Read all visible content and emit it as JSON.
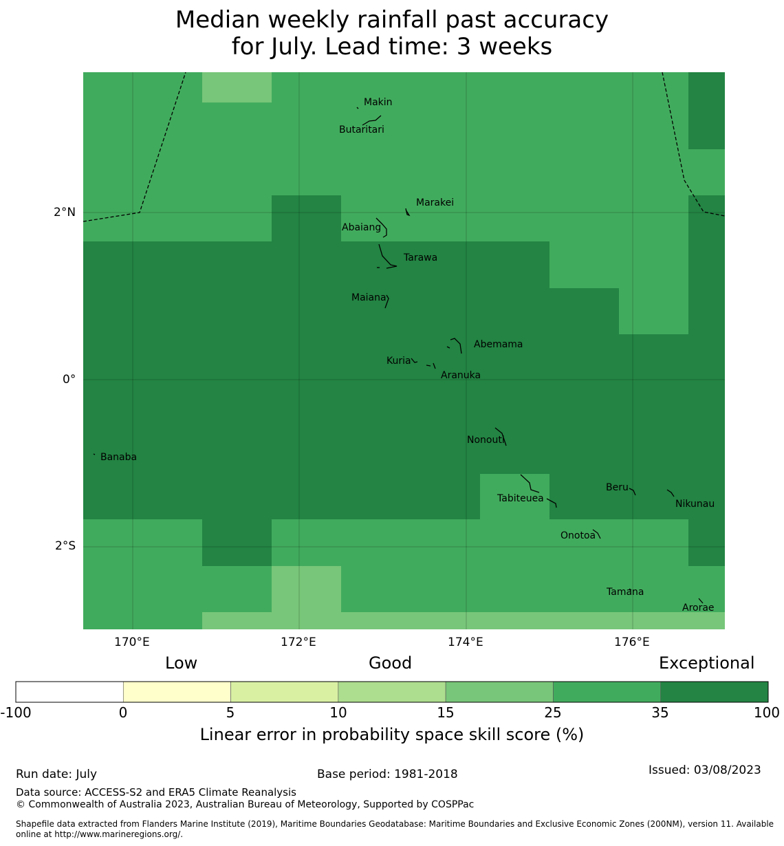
{
  "title_line1": "Median weekly rainfall past accuracy",
  "title_line2": "for July. Lead time: 3 weeks",
  "map": {
    "lon_labels": [
      "170°E",
      "172°E",
      "174°E",
      "176°E"
    ],
    "lat_labels": [
      "2°N",
      "0°",
      "2°S"
    ],
    "places": [
      {
        "name": "Makin",
        "lon": 172.9,
        "lat": 3.3
      },
      {
        "name": "Butaritari",
        "lon": 172.8,
        "lat": 3.0
      },
      {
        "name": "Marakei",
        "lon": 173.3,
        "lat": 2.0
      },
      {
        "name": "Abaiang",
        "lon": 173.0,
        "lat": 1.8
      },
      {
        "name": "Tarawa",
        "lon": 173.1,
        "lat": 1.4
      },
      {
        "name": "Maiana",
        "lon": 173.0,
        "lat": 0.9
      },
      {
        "name": "Abemama",
        "lon": 173.9,
        "lat": 0.4
      },
      {
        "name": "Kuria",
        "lon": 173.4,
        "lat": 0.2
      },
      {
        "name": "Aranuka",
        "lon": 173.6,
        "lat": 0.15
      },
      {
        "name": "Nonouti",
        "lon": 174.4,
        "lat": -0.7
      },
      {
        "name": "Banaba",
        "lon": 169.5,
        "lat": -0.9
      },
      {
        "name": "Tabiteuea",
        "lon": 174.8,
        "lat": -1.3
      },
      {
        "name": "Beru",
        "lon": 176.0,
        "lat": -1.3
      },
      {
        "name": "Nikunau",
        "lon": 176.5,
        "lat": -1.35
      },
      {
        "name": "Onotoa",
        "lon": 175.6,
        "lat": -1.8
      },
      {
        "name": "Tamana",
        "lon": 176.0,
        "lat": -2.5
      },
      {
        "name": "Arorae",
        "lon": 176.8,
        "lat": -2.65
      }
    ],
    "colors": {
      "c15_25": "#78c679",
      "c25_35": "#41ab5d",
      "c35_100": "#238443"
    }
  },
  "colorbar": {
    "categories": [
      "Low",
      "Good",
      "Exceptional"
    ],
    "ticks": [
      "-100",
      "0",
      "5",
      "10",
      "15",
      "25",
      "35",
      "100"
    ],
    "colors": [
      "#ffffff",
      "#ffffcc",
      "#d9f0a3",
      "#addd8e",
      "#78c679",
      "#41ab5d",
      "#238443"
    ],
    "label": "Linear error in probability space skill score (%)"
  },
  "footer": {
    "run_date": "Run date: July",
    "base_period": "Base period: 1981-2018",
    "issued": "Issued: 03/08/2023",
    "data_source": "Data source: ACCESS-S2 and ERA5 Climate Reanalysis",
    "copyright": "© Commonwealth of Australia 2023, Australian Bureau of Meteorology, Supported by COSPPac",
    "shapefile": "Shapefile data extracted from Flanders Marine Institute (2019), Maritime Boundaries Geodatabase: Maritime Boundaries and Exclusive Economic Zones (200NM), version 11. Available online at http://www.marineregions.org/."
  }
}
